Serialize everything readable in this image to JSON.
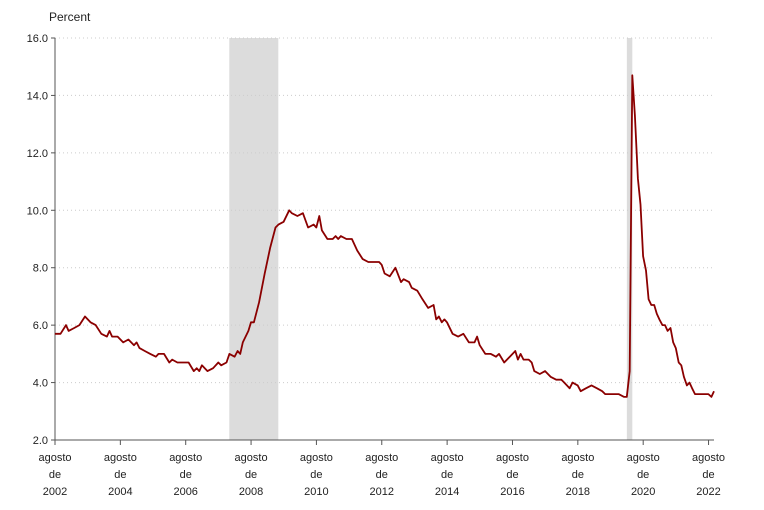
{
  "chart_data": {
    "type": "line",
    "ylabel": "Percent",
    "ylim": [
      2.0,
      16.0
    ],
    "yticks": [
      "2.0",
      "4.0",
      "6.0",
      "8.0",
      "10.0",
      "12.0",
      "14.0",
      "16.0"
    ],
    "xlim": [
      2002.583,
      2022.75
    ],
    "xticks": [
      {
        "x": 2002.583,
        "lines": [
          "agosto",
          "de",
          "2002"
        ]
      },
      {
        "x": 2004.583,
        "lines": [
          "agosto",
          "de",
          "2004"
        ]
      },
      {
        "x": 2006.583,
        "lines": [
          "agosto",
          "de",
          "2006"
        ]
      },
      {
        "x": 2008.583,
        "lines": [
          "agosto",
          "de",
          "2008"
        ]
      },
      {
        "x": 2010.583,
        "lines": [
          "agosto",
          "de",
          "2010"
        ]
      },
      {
        "x": 2012.583,
        "lines": [
          "agosto",
          "de",
          "2012"
        ]
      },
      {
        "x": 2014.583,
        "lines": [
          "agosto",
          "de",
          "2014"
        ]
      },
      {
        "x": 2016.583,
        "lines": [
          "agosto",
          "de",
          "2016"
        ]
      },
      {
        "x": 2018.583,
        "lines": [
          "agosto",
          "de",
          "2018"
        ]
      },
      {
        "x": 2020.583,
        "lines": [
          "agosto",
          "de",
          "2020"
        ]
      },
      {
        "x": 2022.583,
        "lines": [
          "agosto",
          "de",
          "2022"
        ]
      }
    ],
    "grid": "horizontal-dotted",
    "recessions": [
      [
        2007.917,
        2009.417
      ],
      [
        2020.083,
        2020.25
      ]
    ],
    "colors": {
      "line": "#8B0000",
      "recession": "#DCDCDC",
      "grid": "#CCCCCC",
      "axis": "#555555"
    },
    "series": [
      {
        "points": [
          [
            2002.58,
            5.7
          ],
          [
            2002.75,
            5.7
          ],
          [
            2002.92,
            6.0
          ],
          [
            2003.0,
            5.8
          ],
          [
            2003.17,
            5.9
          ],
          [
            2003.33,
            6.0
          ],
          [
            2003.5,
            6.3
          ],
          [
            2003.67,
            6.1
          ],
          [
            2003.83,
            6.0
          ],
          [
            2004.0,
            5.7
          ],
          [
            2004.17,
            5.6
          ],
          [
            2004.25,
            5.8
          ],
          [
            2004.33,
            5.6
          ],
          [
            2004.5,
            5.6
          ],
          [
            2004.67,
            5.4
          ],
          [
            2004.83,
            5.5
          ],
          [
            2005.0,
            5.3
          ],
          [
            2005.08,
            5.4
          ],
          [
            2005.17,
            5.2
          ],
          [
            2005.33,
            5.1
          ],
          [
            2005.5,
            5.0
          ],
          [
            2005.67,
            4.9
          ],
          [
            2005.75,
            5.0
          ],
          [
            2005.92,
            5.0
          ],
          [
            2006.08,
            4.7
          ],
          [
            2006.17,
            4.8
          ],
          [
            2006.33,
            4.7
          ],
          [
            2006.5,
            4.7
          ],
          [
            2006.67,
            4.7
          ],
          [
            2006.83,
            4.4
          ],
          [
            2006.92,
            4.5
          ],
          [
            2007.0,
            4.4
          ],
          [
            2007.08,
            4.6
          ],
          [
            2007.25,
            4.4
          ],
          [
            2007.42,
            4.5
          ],
          [
            2007.58,
            4.7
          ],
          [
            2007.67,
            4.6
          ],
          [
            2007.83,
            4.7
          ],
          [
            2007.92,
            5.0
          ],
          [
            2008.08,
            4.9
          ],
          [
            2008.17,
            5.1
          ],
          [
            2008.25,
            5.0
          ],
          [
            2008.33,
            5.4
          ],
          [
            2008.5,
            5.8
          ],
          [
            2008.58,
            6.1
          ],
          [
            2008.67,
            6.1
          ],
          [
            2008.83,
            6.8
          ],
          [
            2009.0,
            7.8
          ],
          [
            2009.17,
            8.7
          ],
          [
            2009.33,
            9.4
          ],
          [
            2009.42,
            9.5
          ],
          [
            2009.58,
            9.6
          ],
          [
            2009.75,
            10.0
          ],
          [
            2009.83,
            9.9
          ],
          [
            2010.0,
            9.8
          ],
          [
            2010.17,
            9.9
          ],
          [
            2010.33,
            9.4
          ],
          [
            2010.5,
            9.5
          ],
          [
            2010.58,
            9.4
          ],
          [
            2010.67,
            9.8
          ],
          [
            2010.75,
            9.3
          ],
          [
            2010.92,
            9.0
          ],
          [
            2011.08,
            9.0
          ],
          [
            2011.17,
            9.1
          ],
          [
            2011.25,
            9.0
          ],
          [
            2011.33,
            9.1
          ],
          [
            2011.5,
            9.0
          ],
          [
            2011.67,
            9.0
          ],
          [
            2011.83,
            8.6
          ],
          [
            2012.0,
            8.3
          ],
          [
            2012.17,
            8.2
          ],
          [
            2012.33,
            8.2
          ],
          [
            2012.5,
            8.2
          ],
          [
            2012.58,
            8.1
          ],
          [
            2012.67,
            7.8
          ],
          [
            2012.83,
            7.7
          ],
          [
            2013.0,
            8.0
          ],
          [
            2013.17,
            7.5
          ],
          [
            2013.25,
            7.6
          ],
          [
            2013.42,
            7.5
          ],
          [
            2013.5,
            7.3
          ],
          [
            2013.67,
            7.2
          ],
          [
            2013.83,
            6.9
          ],
          [
            2014.0,
            6.6
          ],
          [
            2014.17,
            6.7
          ],
          [
            2014.25,
            6.2
          ],
          [
            2014.33,
            6.3
          ],
          [
            2014.42,
            6.1
          ],
          [
            2014.5,
            6.2
          ],
          [
            2014.58,
            6.1
          ],
          [
            2014.75,
            5.7
          ],
          [
            2014.92,
            5.6
          ],
          [
            2015.08,
            5.7
          ],
          [
            2015.25,
            5.4
          ],
          [
            2015.42,
            5.4
          ],
          [
            2015.5,
            5.6
          ],
          [
            2015.58,
            5.3
          ],
          [
            2015.75,
            5.0
          ],
          [
            2015.92,
            5.0
          ],
          [
            2016.08,
            4.9
          ],
          [
            2016.17,
            5.0
          ],
          [
            2016.33,
            4.7
          ],
          [
            2016.5,
            4.9
          ],
          [
            2016.67,
            5.1
          ],
          [
            2016.75,
            4.8
          ],
          [
            2016.83,
            5.0
          ],
          [
            2016.92,
            4.8
          ],
          [
            2017.08,
            4.8
          ],
          [
            2017.17,
            4.7
          ],
          [
            2017.25,
            4.4
          ],
          [
            2017.42,
            4.3
          ],
          [
            2017.58,
            4.4
          ],
          [
            2017.75,
            4.2
          ],
          [
            2017.92,
            4.1
          ],
          [
            2018.08,
            4.1
          ],
          [
            2018.17,
            4.0
          ],
          [
            2018.33,
            3.8
          ],
          [
            2018.42,
            4.0
          ],
          [
            2018.58,
            3.9
          ],
          [
            2018.67,
            3.7
          ],
          [
            2018.83,
            3.8
          ],
          [
            2019.0,
            3.9
          ],
          [
            2019.17,
            3.8
          ],
          [
            2019.33,
            3.7
          ],
          [
            2019.42,
            3.6
          ],
          [
            2019.58,
            3.6
          ],
          [
            2019.67,
            3.6
          ],
          [
            2019.83,
            3.6
          ],
          [
            2020.0,
            3.5
          ],
          [
            2020.08,
            3.5
          ],
          [
            2020.17,
            4.4
          ],
          [
            2020.25,
            14.7
          ],
          [
            2020.33,
            13.3
          ],
          [
            2020.42,
            11.1
          ],
          [
            2020.5,
            10.2
          ],
          [
            2020.58,
            8.4
          ],
          [
            2020.67,
            7.9
          ],
          [
            2020.75,
            6.9
          ],
          [
            2020.83,
            6.7
          ],
          [
            2020.92,
            6.7
          ],
          [
            2021.0,
            6.4
          ],
          [
            2021.08,
            6.2
          ],
          [
            2021.17,
            6.0
          ],
          [
            2021.25,
            6.0
          ],
          [
            2021.33,
            5.8
          ],
          [
            2021.42,
            5.9
          ],
          [
            2021.5,
            5.4
          ],
          [
            2021.58,
            5.2
          ],
          [
            2021.67,
            4.7
          ],
          [
            2021.75,
            4.6
          ],
          [
            2021.83,
            4.2
          ],
          [
            2021.92,
            3.9
          ],
          [
            2022.0,
            4.0
          ],
          [
            2022.08,
            3.8
          ],
          [
            2022.17,
            3.6
          ],
          [
            2022.25,
            3.6
          ],
          [
            2022.42,
            3.6
          ],
          [
            2022.58,
            3.6
          ],
          [
            2022.67,
            3.5
          ],
          [
            2022.75,
            3.7
          ]
        ]
      }
    ]
  }
}
